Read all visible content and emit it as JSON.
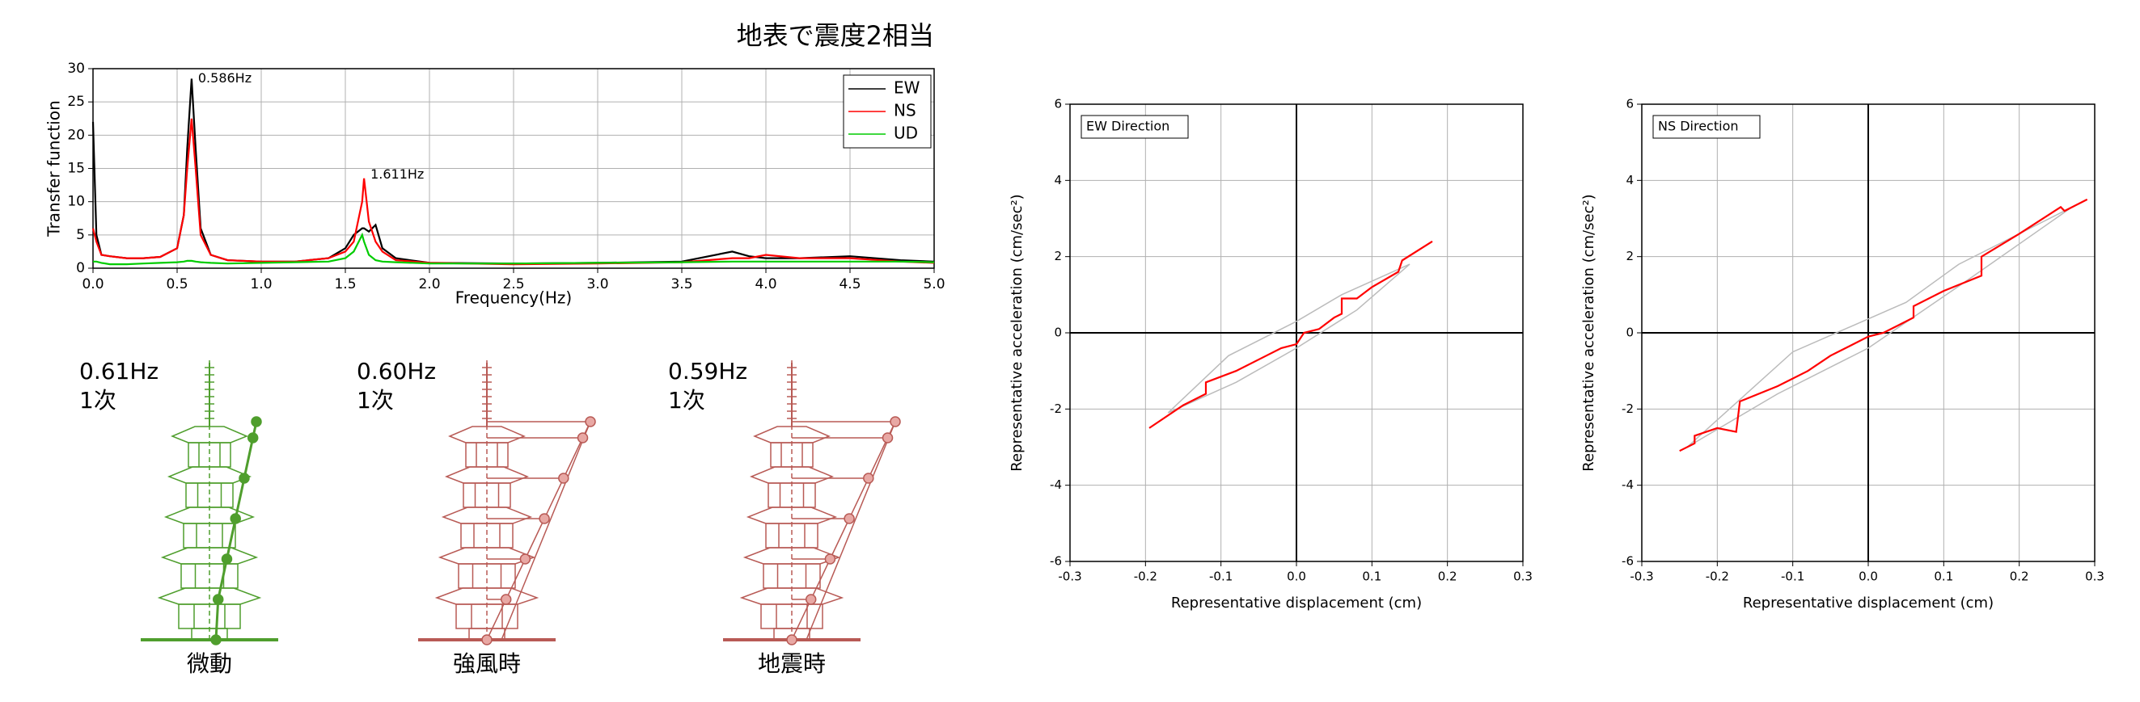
{
  "chart_data": [
    {
      "type": "line",
      "title": "地表で震度2相当",
      "x_label": "Frequency(Hz)",
      "y_label": "Transfer function",
      "x": [
        0,
        0.02,
        0.05,
        0.1,
        0.2,
        0.3,
        0.4,
        0.5,
        0.54,
        0.56,
        0.586,
        0.61,
        0.64,
        0.7,
        0.8,
        1.0,
        1.2,
        1.4,
        1.5,
        1.55,
        1.6,
        1.611,
        1.64,
        1.68,
        1.72,
        1.8,
        2.0,
        2.5,
        3.0,
        3.5,
        3.8,
        3.9,
        4.0,
        4.2,
        4.5,
        4.8,
        5.0
      ],
      "series": [
        {
          "name": "EW",
          "color": "#000000",
          "values": [
            22,
            5,
            2,
            1.8,
            1.5,
            1.5,
            1.7,
            3,
            8,
            18,
            28.5,
            18,
            6,
            2,
            1.2,
            1,
            1,
            1.5,
            3,
            5,
            6,
            6,
            5.5,
            6.5,
            3,
            1.5,
            0.8,
            0.7,
            0.8,
            1,
            2.5,
            1.8,
            1.5,
            1.5,
            1.8,
            1.2,
            1
          ]
        },
        {
          "name": "NS",
          "color": "#ff0000",
          "values": [
            6,
            4,
            2,
            1.8,
            1.5,
            1.5,
            1.7,
            3,
            8,
            15,
            22.5,
            15,
            5,
            2,
            1.2,
            1,
            1,
            1.5,
            2.5,
            4,
            10,
            13.5,
            7,
            4,
            2.5,
            1.2,
            0.8,
            0.6,
            0.7,
            0.9,
            1.5,
            1.5,
            2,
            1.5,
            1.5,
            1,
            0.8
          ]
        },
        {
          "name": "UD",
          "color": "#00cc00",
          "values": [
            1,
            1,
            0.8,
            0.6,
            0.6,
            0.7,
            0.8,
            0.9,
            1,
            1.1,
            1.1,
            1,
            0.9,
            0.8,
            0.7,
            0.8,
            0.9,
            1,
            1.5,
            2.5,
            5,
            4,
            2,
            1.2,
            1,
            0.9,
            0.7,
            0.7,
            0.8,
            0.9,
            1,
            1,
            1,
            1,
            1,
            1,
            0.9
          ]
        }
      ],
      "annotations": [
        {
          "text": "0.586Hz",
          "x": 0.586,
          "y": 28.5
        },
        {
          "text": "1.611Hz",
          "x": 1.611,
          "y": 14
        }
      ],
      "xlim": [
        0,
        5
      ],
      "xticks": [
        {
          "value": 0,
          "label": "0.0"
        },
        {
          "value": 0.5,
          "label": "0.5"
        },
        {
          "value": 1,
          "label": "1.0"
        },
        {
          "value": 1.5,
          "label": "1.5"
        },
        {
          "value": 2,
          "label": "2.0"
        },
        {
          "value": 2.5,
          "label": "2.5"
        },
        {
          "value": 3,
          "label": "3.0"
        },
        {
          "value": 3.5,
          "label": "3.5"
        },
        {
          "value": 4,
          "label": "4.0"
        },
        {
          "value": 4.5,
          "label": "4.5"
        },
        {
          "value": 5,
          "label": "5.0"
        }
      ],
      "ylim": [
        0,
        30
      ],
      "yticks": [
        0,
        5,
        10,
        15,
        20,
        25,
        30
      ],
      "grid": true,
      "legend": "upper right"
    },
    {
      "type": "line",
      "label": "EW Direction",
      "x_label": "Representative displacement (cm)",
      "y_label": "Representative acceleration (cm/sec²)",
      "series": [
        {
          "color": "#bbbbbb",
          "x": [
            -0.17,
            -0.08,
            0,
            0.08,
            0.15,
            0.06,
            0,
            -0.09,
            -0.17
          ],
          "values": [
            -2.1,
            -1.3,
            -0.4,
            0.6,
            1.8,
            1.0,
            0.3,
            -0.6,
            -2.1
          ]
        },
        {
          "color": "#ff0000",
          "x": [
            -0.195,
            -0.15,
            -0.12,
            -0.12,
            -0.08,
            -0.04,
            -0.02,
            0,
            0.01,
            0.03,
            0.05,
            0.06,
            0.06,
            0.08,
            0.1,
            0.135,
            0.14,
            0.18
          ],
          "values": [
            -2.5,
            -1.9,
            -1.6,
            -1.3,
            -1.0,
            -0.6,
            -0.4,
            -0.3,
            0,
            0.1,
            0.4,
            0.5,
            0.9,
            0.9,
            1.2,
            1.6,
            1.9,
            2.4
          ]
        }
      ],
      "xlim": [
        -0.3,
        0.3
      ],
      "xticks": [
        -0.3,
        -0.2,
        -0.1,
        {
          "value": 0,
          "label": "0.0"
        },
        0.1,
        0.2,
        0.3
      ],
      "ylim": [
        -6,
        6
      ],
      "yticks": [
        -6,
        -4,
        -2,
        0,
        2,
        4,
        6
      ],
      "grid": true,
      "zero_lines": true
    },
    {
      "type": "line",
      "label": "NS Direction",
      "x_label": "Representative displacement (cm)",
      "y_label": "Representative acceleration (cm/sec²)",
      "series": [
        {
          "color": "#bbbbbb",
          "x": [
            -0.24,
            -0.12,
            0,
            0.14,
            0.27,
            0.12,
            0.05,
            -0.1,
            -0.24
          ],
          "values": [
            -3.0,
            -1.6,
            -0.4,
            1.5,
            3.3,
            1.8,
            0.8,
            -0.5,
            -3.0
          ]
        },
        {
          "color": "#ff0000",
          "x": [
            -0.25,
            -0.23,
            -0.23,
            -0.2,
            -0.175,
            -0.17,
            -0.12,
            -0.08,
            -0.05,
            -0.03,
            0,
            0.02,
            0.04,
            0.06,
            0.06,
            0.1,
            0.15,
            0.15,
            0.2,
            0.255,
            0.26,
            0.29
          ],
          "values": [
            -3.1,
            -2.9,
            -2.7,
            -2.5,
            -2.6,
            -1.8,
            -1.4,
            -1.0,
            -0.6,
            -0.4,
            -0.1,
            0,
            0.2,
            0.4,
            0.7,
            1.1,
            1.5,
            2.0,
            2.6,
            3.3,
            3.2,
            3.5
          ]
        }
      ],
      "xlim": [
        -0.3,
        0.3
      ],
      "xticks": [
        -0.3,
        -0.2,
        -0.1,
        {
          "value": 0,
          "label": "0.0"
        },
        0.1,
        0.2,
        0.3
      ],
      "ylim": [
        -6,
        6
      ],
      "yticks": [
        -6,
        -4,
        -2,
        0,
        2,
        4,
        6
      ],
      "grid": true,
      "zero_lines": true
    }
  ],
  "mode_shapes": [
    {
      "frequency": "0.61Hz",
      "order": "1次",
      "condition": "微動",
      "color": "#4f9e2d"
    },
    {
      "frequency": "0.60Hz",
      "order": "1次",
      "condition": "強風時",
      "color": "#b85a55"
    },
    {
      "frequency": "0.59Hz",
      "order": "1次",
      "condition": "地震時",
      "color": "#b85a55"
    }
  ]
}
